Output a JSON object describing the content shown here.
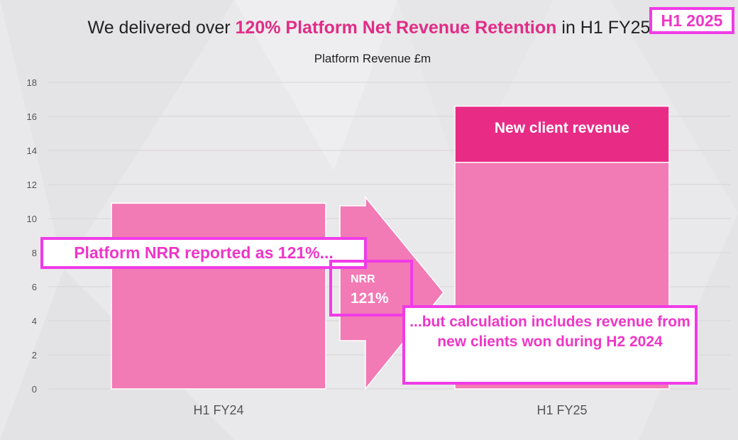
{
  "title": {
    "prefix": "We delivered over ",
    "highlight": "120% Platform Net Revenue Retention",
    "suffix": " in H1 FY25"
  },
  "colors": {
    "background": "#e9e8ea",
    "bar": "#f27ab5",
    "new_client": "#e82c86",
    "highlight_text": "#e12c86",
    "annotation_border": "#f03be6"
  },
  "nrr_arrow": {
    "label": "NRR",
    "value": "121%"
  },
  "annotations": {
    "h1_tag": "H1 2025",
    "nrr_claim": "Platform NRR reported as 121%...",
    "calculation_note": "...but calculation includes revenue from new clients won during H2 2024"
  },
  "chart_data": {
    "type": "bar",
    "title": "Platform Revenue £m",
    "xlabel": "",
    "ylabel": "",
    "ylim": [
      0,
      18
    ],
    "yticks": [
      0,
      2,
      4,
      6,
      8,
      10,
      12,
      14,
      16,
      18
    ],
    "grid": true,
    "categories": [
      "H1 FY24",
      "H1 FY25"
    ],
    "series": [
      {
        "name": "",
        "values": [
          10.9,
          13.3
        ]
      },
      {
        "name": "New client revenue",
        "values": [
          0,
          3.3
        ]
      }
    ],
    "segment_label": "New client revenue"
  }
}
